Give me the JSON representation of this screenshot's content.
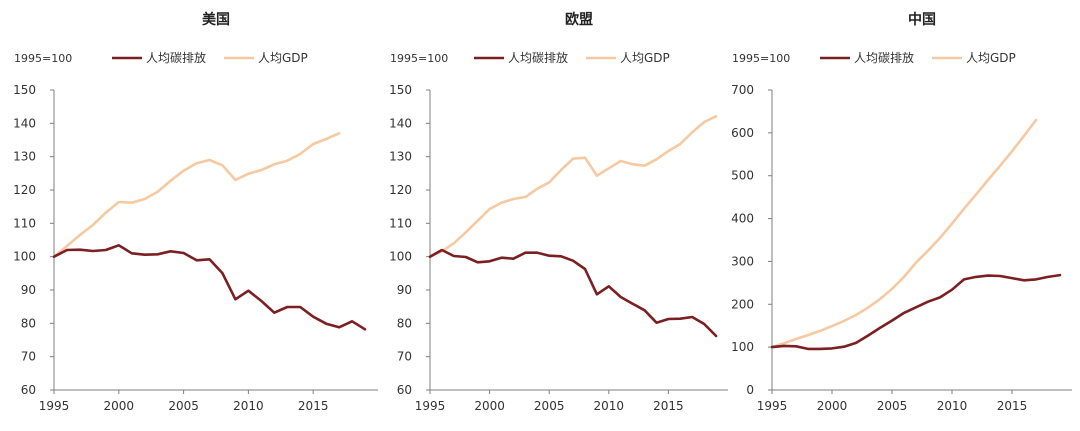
{
  "colors": {
    "emissions": "#7B1F23",
    "gdp": "#F6C9A1",
    "axis": "#7f7f7f",
    "text": "#333333"
  },
  "chart_data": [
    {
      "type": "line",
      "title": "美国",
      "note": "1995=100",
      "x": [
        1995,
        1996,
        1997,
        1998,
        1999,
        2000,
        2001,
        2002,
        2003,
        2004,
        2005,
        2006,
        2007,
        2008,
        2009,
        2010,
        2011,
        2012,
        2013,
        2014,
        2015,
        2016,
        2017,
        2018,
        2019
      ],
      "xticks": [
        1995,
        2000,
        2005,
        2010,
        2015
      ],
      "yticks": [
        60,
        70,
        80,
        90,
        100,
        110,
        120,
        130,
        140,
        150
      ],
      "xlim": [
        1995,
        2020
      ],
      "ylim": [
        60,
        150
      ],
      "series": [
        {
          "name": "人均碳排放",
          "color": "#7B1F23",
          "values": [
            100,
            102,
            102.1,
            101.7,
            102,
            103.4,
            101,
            100.6,
            100.7,
            101.6,
            101.1,
            98.9,
            99.2,
            95,
            87.2,
            89.8,
            86.7,
            83.2,
            84.9,
            84.9,
            82,
            79.9,
            78.8,
            80.6,
            78.2
          ]
        },
        {
          "name": "人均GDP",
          "color": "#F6C9A1",
          "values": [
            100,
            103.2,
            106.5,
            109.5,
            113.2,
            116.4,
            116.2,
            117.3,
            119.5,
            122.8,
            125.8,
            128,
            129,
            127.4,
            123,
            124.9,
            126,
            127.7,
            128.8,
            130.8,
            133.8,
            135.3,
            137,
            null,
            null
          ]
        }
      ]
    },
    {
      "type": "line",
      "title": "欧盟",
      "note": "1995=100",
      "x": [
        1995,
        1996,
        1997,
        1998,
        1999,
        2000,
        2001,
        2002,
        2003,
        2004,
        2005,
        2006,
        2007,
        2008,
        2009,
        2010,
        2011,
        2012,
        2013,
        2014,
        2015,
        2016,
        2017,
        2018,
        2019
      ],
      "xticks": [
        1995,
        2000,
        2005,
        2010,
        2015
      ],
      "yticks": [
        60,
        70,
        80,
        90,
        100,
        110,
        120,
        130,
        140,
        150
      ],
      "xlim": [
        1995,
        2020
      ],
      "ylim": [
        60,
        150
      ],
      "series": [
        {
          "name": "人均碳排放",
          "color": "#7B1F23",
          "values": [
            100,
            102,
            100.2,
            99.9,
            98.3,
            98.6,
            99.7,
            99.4,
            101.2,
            101.2,
            100.3,
            100.1,
            98.8,
            96.3,
            88.7,
            91.1,
            87.9,
            85.9,
            83.9,
            80.2,
            81.3,
            81.4,
            81.9,
            79.8,
            76.2
          ]
        },
        {
          "name": "人均GDP",
          "color": "#F6C9A1",
          "values": [
            100,
            101.6,
            104,
            107.3,
            110.8,
            114.3,
            116.2,
            117.3,
            117.9,
            120.4,
            122.3,
            126,
            129.4,
            129.7,
            124.3,
            126.5,
            128.7,
            127.7,
            127.3,
            129.2,
            131.7,
            133.8,
            137.3,
            140.4,
            142.1
          ]
        }
      ]
    },
    {
      "type": "line",
      "title": "中国",
      "note": "1995=100",
      "x": [
        1995,
        1996,
        1997,
        1998,
        1999,
        2000,
        2001,
        2002,
        2003,
        2004,
        2005,
        2006,
        2007,
        2008,
        2009,
        2010,
        2011,
        2012,
        2013,
        2014,
        2015,
        2016,
        2017,
        2018,
        2019
      ],
      "xticks": [
        1995,
        2000,
        2005,
        2010,
        2015
      ],
      "yticks": [
        0,
        100,
        200,
        300,
        400,
        500,
        600,
        700
      ],
      "xlim": [
        1995,
        2020
      ],
      "ylim": [
        0,
        700
      ],
      "series": [
        {
          "name": "人均碳排放",
          "color": "#7B1F23",
          "values": [
            100,
            103,
            102,
            96,
            96,
            97,
            101,
            110,
            127,
            145,
            162,
            180,
            193,
            206,
            216,
            234,
            258,
            264,
            267,
            266,
            261,
            256,
            258,
            264,
            268
          ]
        },
        {
          "name": "人均GDP",
          "color": "#F6C9A1",
          "values": [
            100,
            109,
            119,
            128,
            138,
            149,
            161,
            175,
            192,
            212,
            236,
            264,
            297,
            325,
            355,
            388,
            423,
            456,
            490,
            523,
            557,
            593,
            630,
            null,
            null
          ]
        }
      ]
    }
  ]
}
